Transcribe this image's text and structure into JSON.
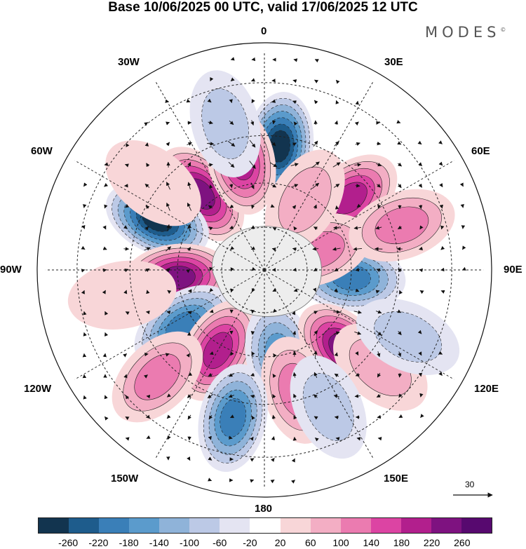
{
  "title": "Base 10/06/2025 00 UTC, valid 17/06/2025 12 UTC",
  "logo": "MODES",
  "logo_mark": "©",
  "longitude_labels": {
    "top": "0",
    "bottom": "180",
    "left": "90W",
    "right": "90E",
    "w30": "30W",
    "e30": "30E",
    "w60": "60W",
    "e60": "60E",
    "w120": "120W",
    "e120": "120E",
    "w150": "150W",
    "e150": "150E"
  },
  "vector_reference": "30",
  "colorbar": {
    "ticks": [
      "-260",
      "-220",
      "-180",
      "-140",
      "-100",
      "-60",
      "-20",
      "20",
      "60",
      "100",
      "140",
      "180",
      "220",
      "260"
    ],
    "colors": [
      "#12344f",
      "#1e5c8c",
      "#3a7fb8",
      "#5b9bcc",
      "#8fb3d9",
      "#bcc9e6",
      "#e4e4f2",
      "#ffffff",
      "#f8d6d8",
      "#f3aec4",
      "#eb7bb0",
      "#dc44a3",
      "#b21f8d",
      "#7e1280",
      "#57096f"
    ]
  },
  "anomalies": [
    {
      "lat": -48,
      "lon": 7,
      "value": -260
    },
    {
      "lat": -56,
      "lon": -40,
      "value": 220
    },
    {
      "lat": -52,
      "lon": -12,
      "value": 200
    },
    {
      "lat": -52,
      "lon": 50,
      "value": 200
    },
    {
      "lat": -50,
      "lon": -65,
      "value": -260
    },
    {
      "lat": -60,
      "lon": -95,
      "value": 220
    },
    {
      "lat": -60,
      "lon": 95,
      "value": -180
    },
    {
      "lat": -56,
      "lon": -125,
      "value": -180
    },
    {
      "lat": -58,
      "lon": -150,
      "value": 200
    },
    {
      "lat": -60,
      "lon": 170,
      "value": -140
    },
    {
      "lat": -52,
      "lon": 135,
      "value": 240
    },
    {
      "lat": -48,
      "lon": 165,
      "value": 100
    },
    {
      "lat": -40,
      "lon": -168,
      "value": -180
    },
    {
      "lat": -70,
      "lon": 70,
      "value": 100
    },
    {
      "lat": -62,
      "lon": 30,
      "value": 60
    },
    {
      "lat": -40,
      "lon": -135,
      "value": 100
    },
    {
      "lat": -42,
      "lon": 72,
      "value": 100
    },
    {
      "lat": -40,
      "lon": 130,
      "value": 60
    },
    {
      "lat": -43,
      "lon": -52,
      "value": 40
    },
    {
      "lat": -38,
      "lon": 115,
      "value": -60
    },
    {
      "lat": -40,
      "lon": 155,
      "value": -60
    },
    {
      "lat": -42,
      "lon": -100,
      "value": 40
    },
    {
      "lat": -40,
      "lon": -15,
      "value": -60
    }
  ]
}
